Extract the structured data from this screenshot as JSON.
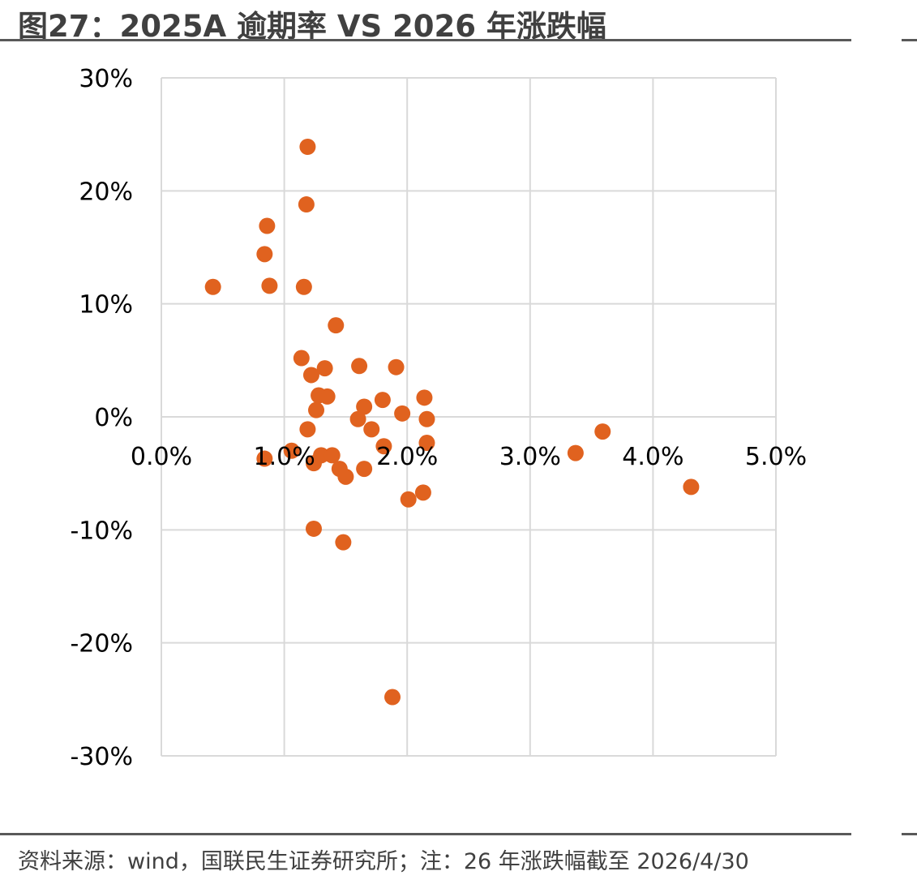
{
  "title": "图27：2025A 逾期率  VS 2026 年涨跌幅",
  "source": "资料来源：wind，国联民生证券研究所；注：26 年涨跌幅截至 2026/4/30",
  "colors": {
    "point": "#E0621F",
    "grid": "#D9D9D9",
    "rule": "#595959",
    "title": "#404040"
  },
  "chart_data": {
    "type": "scatter",
    "title": "2025A 逾期率 VS 2026 年涨跌幅",
    "xlabel": "",
    "ylabel": "",
    "xlim": [
      0,
      0.05
    ],
    "ylim": [
      -0.3,
      0.3
    ],
    "grid": true,
    "x_ticks": [
      {
        "value": 0.0,
        "label": "0.0%"
      },
      {
        "value": 0.01,
        "label": "1.0%"
      },
      {
        "value": 0.02,
        "label": "2.0%"
      },
      {
        "value": 0.03,
        "label": "3.0%"
      },
      {
        "value": 0.04,
        "label": "4.0%"
      },
      {
        "value": 0.05,
        "label": "5.0%"
      }
    ],
    "y_ticks": [
      {
        "value": 0.3,
        "label": "30%"
      },
      {
        "value": 0.2,
        "label": "20%"
      },
      {
        "value": 0.1,
        "label": "10%"
      },
      {
        "value": 0.0,
        "label": "0%"
      },
      {
        "value": -0.1,
        "label": "-10%"
      },
      {
        "value": -0.2,
        "label": "-20%"
      },
      {
        "value": -0.3,
        "label": "-30%"
      }
    ],
    "points": [
      {
        "x": 0.0042,
        "y": 0.115
      },
      {
        "x": 0.0084,
        "y": 0.144
      },
      {
        "x": 0.0086,
        "y": 0.169
      },
      {
        "x": 0.0088,
        "y": 0.116
      },
      {
        "x": 0.0084,
        "y": -0.037
      },
      {
        "x": 0.0106,
        "y": -0.03
      },
      {
        "x": 0.0114,
        "y": 0.052
      },
      {
        "x": 0.0116,
        "y": 0.115
      },
      {
        "x": 0.0118,
        "y": 0.188
      },
      {
        "x": 0.0119,
        "y": 0.239
      },
      {
        "x": 0.0119,
        "y": -0.011
      },
      {
        "x": 0.0122,
        "y": 0.037
      },
      {
        "x": 0.0124,
        "y": -0.041
      },
      {
        "x": 0.0124,
        "y": -0.099
      },
      {
        "x": 0.0126,
        "y": 0.006
      },
      {
        "x": 0.0128,
        "y": 0.019
      },
      {
        "x": 0.013,
        "y": -0.034
      },
      {
        "x": 0.0133,
        "y": 0.043
      },
      {
        "x": 0.0135,
        "y": 0.018
      },
      {
        "x": 0.0139,
        "y": -0.034
      },
      {
        "x": 0.0142,
        "y": 0.081
      },
      {
        "x": 0.0145,
        "y": -0.046
      },
      {
        "x": 0.0148,
        "y": -0.111
      },
      {
        "x": 0.015,
        "y": -0.053
      },
      {
        "x": 0.016,
        "y": -0.002
      },
      {
        "x": 0.0161,
        "y": 0.045
      },
      {
        "x": 0.0165,
        "y": 0.009
      },
      {
        "x": 0.0165,
        "y": -0.046
      },
      {
        "x": 0.0171,
        "y": -0.011
      },
      {
        "x": 0.018,
        "y": 0.015
      },
      {
        "x": 0.0181,
        "y": -0.026
      },
      {
        "x": 0.0188,
        "y": -0.248
      },
      {
        "x": 0.0191,
        "y": 0.044
      },
      {
        "x": 0.0196,
        "y": 0.003
      },
      {
        "x": 0.0201,
        "y": -0.073
      },
      {
        "x": 0.0213,
        "y": -0.067
      },
      {
        "x": 0.0214,
        "y": 0.017
      },
      {
        "x": 0.0216,
        "y": -0.002
      },
      {
        "x": 0.0216,
        "y": -0.023
      },
      {
        "x": 0.0337,
        "y": -0.032
      },
      {
        "x": 0.0359,
        "y": -0.013
      },
      {
        "x": 0.0431,
        "y": -0.062
      }
    ]
  }
}
